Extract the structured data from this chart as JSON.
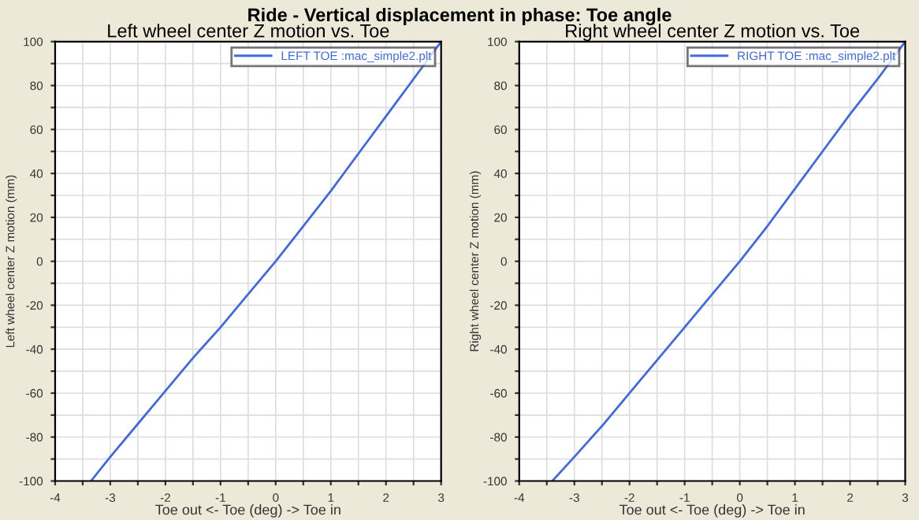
{
  "chart_data": [
    {
      "type": "line",
      "title": "Left wheel center Z motion vs. Toe",
      "xlabel": "Toe out <- Toe (deg) -> Toe in",
      "ylabel": "Left wheel center Z motion (mm)",
      "annotations": [
        "Ride - Vertical displacement in phase: Toe angle"
      ],
      "xlim": [
        -4,
        3
      ],
      "ylim": [
        -100,
        100
      ],
      "xticks": [
        -4,
        {
          "value": -3.5,
          "label": null
        },
        -3,
        {
          "value": -2.5,
          "label": null
        },
        -2,
        {
          "value": -1.5,
          "label": null
        },
        -1,
        {
          "value": -0.5,
          "label": null
        },
        0,
        {
          "value": 0.5,
          "label": null
        },
        1,
        {
          "value": 1.5,
          "label": null
        },
        2,
        {
          "value": 2.5,
          "label": null
        },
        3
      ],
      "yticks": [
        -100,
        {
          "value": -90,
          "label": null
        },
        -80,
        {
          "value": -70,
          "label": null
        },
        -60,
        {
          "value": -50,
          "label": null
        },
        -40,
        {
          "value": -30,
          "label": null
        },
        -20,
        {
          "value": -10,
          "label": null
        },
        0,
        {
          "value": 10,
          "label": null
        },
        20,
        {
          "value": 30,
          "label": null
        },
        40,
        {
          "value": 50,
          "label": null
        },
        60,
        {
          "value": 70,
          "label": null
        },
        80,
        {
          "value": 90,
          "label": null
        },
        100
      ],
      "grid": true,
      "legend": "top right",
      "line_style": "solid",
      "series": [
        {
          "name": "LEFT TOE :mac_simple2.plt",
          "color": "#4169e1",
          "x": [
            -3.35,
            -3,
            -2.5,
            -2,
            -1.5,
            -1,
            -0.5,
            0,
            0.5,
            1,
            1.5,
            2,
            2.5,
            3
          ],
          "values": [
            -100,
            -89,
            -74,
            -59,
            -44,
            -30,
            -15,
            0,
            16,
            32,
            49,
            66,
            83,
            100
          ]
        }
      ]
    },
    {
      "type": "line",
      "title": "Right wheel center Z motion vs. Toe",
      "xlabel": "Toe out <- Toe (deg) -> Toe in",
      "ylabel": "Right wheel center Z motion (mm)",
      "xlim": [
        -4,
        3
      ],
      "ylim": [
        -100,
        100
      ],
      "xticks": [
        -4,
        {
          "value": -3.5,
          "label": null
        },
        -3,
        {
          "value": -2.5,
          "label": null
        },
        -2,
        {
          "value": -1.5,
          "label": null
        },
        -1,
        {
          "value": -0.5,
          "label": null
        },
        0,
        {
          "value": 0.5,
          "label": null
        },
        1,
        {
          "value": 1.5,
          "label": null
        },
        2,
        {
          "value": 2.5,
          "label": null
        },
        3
      ],
      "yticks": [
        -100,
        {
          "value": -90,
          "label": null
        },
        -80,
        {
          "value": -70,
          "label": null
        },
        -60,
        {
          "value": -50,
          "label": null
        },
        -40,
        {
          "value": -30,
          "label": null
        },
        -20,
        {
          "value": -10,
          "label": null
        },
        0,
        {
          "value": 10,
          "label": null
        },
        20,
        {
          "value": 30,
          "label": null
        },
        40,
        {
          "value": 50,
          "label": null
        },
        60,
        {
          "value": 70,
          "label": null
        },
        80,
        {
          "value": 90,
          "label": null
        },
        100
      ],
      "grid": true,
      "legend": "top right",
      "line_style": "solid",
      "series": [
        {
          "name": "RIGHT TOE :mac_simple2.plt",
          "color": "#4169e1",
          "x": [
            -3.4,
            -3,
            -2.5,
            -2,
            -1.5,
            -1,
            -0.5,
            0,
            0.5,
            1,
            1.5,
            2,
            2.5,
            3
          ],
          "values": [
            -100,
            -89,
            -75,
            -60,
            -45,
            -30,
            -15,
            0,
            16,
            33,
            50,
            67,
            83,
            100
          ]
        }
      ]
    }
  ]
}
